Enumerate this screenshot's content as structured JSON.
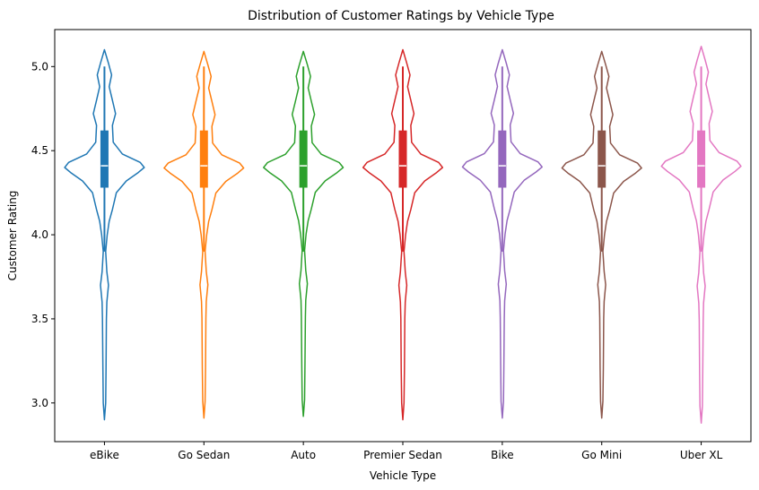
{
  "chart_data": {
    "type": "violin",
    "title": "Distribution of Customer Ratings by Vehicle Type",
    "xlabel": "Vehicle Type",
    "ylabel": "Customer Rating",
    "ylim": [
      2.77,
      5.22
    ],
    "yticks": [
      "3.0",
      "3.5",
      "4.0",
      "4.5",
      "5.0"
    ],
    "grid": false,
    "legend": "none",
    "categories": [
      "eBike",
      "Go Sedan",
      "Auto",
      "Premier Sedan",
      "Bike",
      "Go Mini",
      "Uber XL"
    ],
    "series": [
      {
        "color": "#1f77b4",
        "min": 2.9,
        "q1": 4.28,
        "median": 4.41,
        "q3": 4.62,
        "max": 5.1,
        "whisker_low": 3.9,
        "whisker_high": 5.0
      },
      {
        "color": "#ff7f0e",
        "min": 2.91,
        "q1": 4.28,
        "median": 4.41,
        "q3": 4.62,
        "max": 5.09,
        "whisker_low": 3.9,
        "whisker_high": 5.0
      },
      {
        "color": "#2ca02c",
        "min": 2.92,
        "q1": 4.28,
        "median": 4.41,
        "q3": 4.62,
        "max": 5.09,
        "whisker_low": 3.9,
        "whisker_high": 5.0
      },
      {
        "color": "#d62728",
        "min": 2.9,
        "q1": 4.28,
        "median": 4.41,
        "q3": 4.62,
        "max": 5.1,
        "whisker_low": 3.9,
        "whisker_high": 5.0
      },
      {
        "color": "#9467bd",
        "min": 2.91,
        "q1": 4.28,
        "median": 4.41,
        "q3": 4.62,
        "max": 5.1,
        "whisker_low": 3.9,
        "whisker_high": 5.0
      },
      {
        "color": "#8c564b",
        "min": 2.91,
        "q1": 4.28,
        "median": 4.41,
        "q3": 4.62,
        "max": 5.09,
        "whisker_low": 3.9,
        "whisker_high": 5.0
      },
      {
        "color": "#e377c2",
        "min": 2.88,
        "q1": 4.28,
        "median": 4.41,
        "q3": 4.62,
        "max": 5.12,
        "whisker_low": 3.9,
        "whisker_high": 5.0
      }
    ],
    "density_profile": [
      [
        2.9,
        0.0
      ],
      [
        3.0,
        0.03
      ],
      [
        3.2,
        0.04
      ],
      [
        3.5,
        0.05
      ],
      [
        3.6,
        0.06
      ],
      [
        3.7,
        0.1
      ],
      [
        3.78,
        0.06
      ],
      [
        3.9,
        0.03
      ],
      [
        4.0,
        0.07
      ],
      [
        4.08,
        0.12
      ],
      [
        4.15,
        0.2
      ],
      [
        4.25,
        0.3
      ],
      [
        4.32,
        0.55
      ],
      [
        4.37,
        0.85
      ],
      [
        4.4,
        1.0
      ],
      [
        4.43,
        0.9
      ],
      [
        4.48,
        0.45
      ],
      [
        4.55,
        0.22
      ],
      [
        4.65,
        0.2
      ],
      [
        4.72,
        0.28
      ],
      [
        4.8,
        0.2
      ],
      [
        4.88,
        0.12
      ],
      [
        4.95,
        0.18
      ],
      [
        5.02,
        0.1
      ],
      [
        5.1,
        0.0
      ]
    ]
  }
}
